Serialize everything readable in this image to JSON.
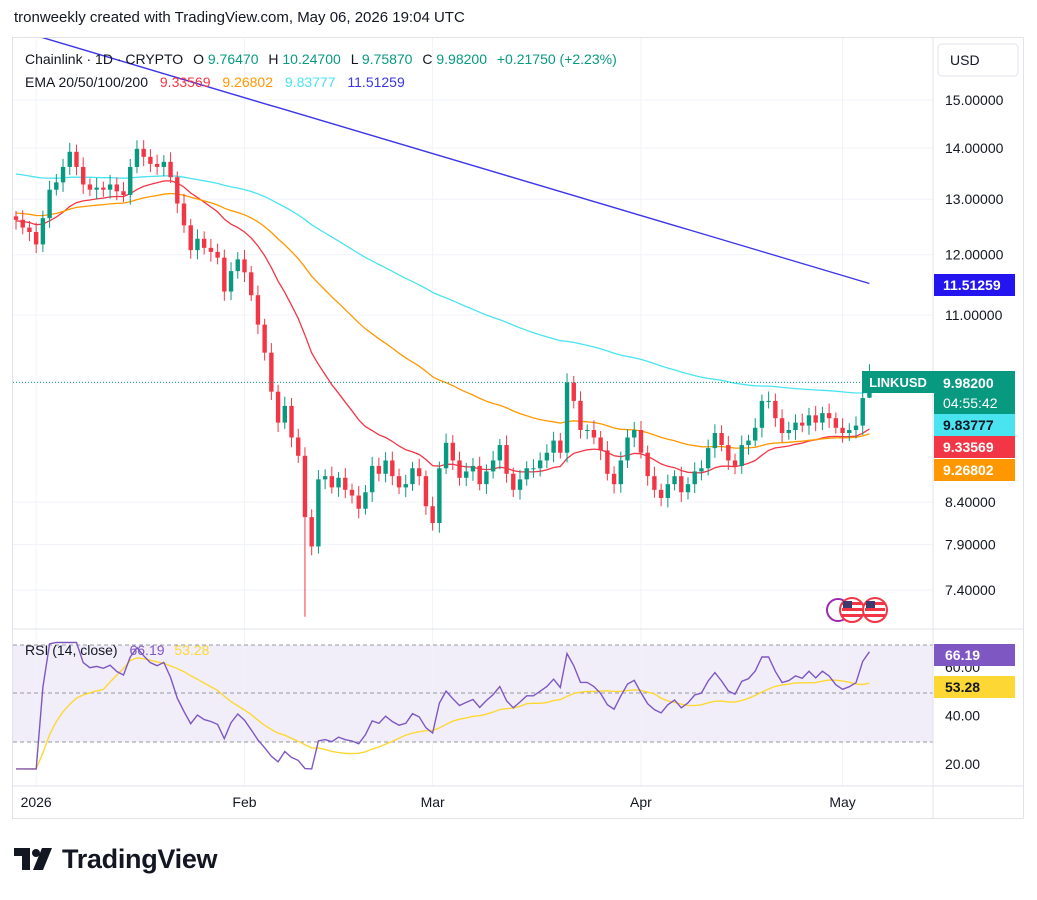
{
  "header": {
    "text": "tronweekly created with TradingView.com, May 06, 2026 19:04 UTC"
  },
  "currency_button": "USD",
  "legend": {
    "symbol": "Chainlink · 1D · CRYPTO",
    "o_label": "O",
    "o_value": "9.76470",
    "h_label": "H",
    "h_value": "10.24700",
    "l_label": "L",
    "l_value": "9.75870",
    "c_label": "C",
    "c_value": "9.98200",
    "change": "+0.21750 (+2.23%)",
    "ema_label": "EMA 20/50/100/200",
    "ema20": "9.33569",
    "ema50": "9.26802",
    "ema100": "9.83777",
    "ema200": "11.51259"
  },
  "rsi_legend": {
    "label": "RSI (14, close)",
    "rsi": "66.19",
    "ma": "53.28"
  },
  "price_badges": {
    "symbol": "LINKUSD",
    "price": "9.98200",
    "countdown": "04:55:42",
    "ema100": "9.83777",
    "ema20": "9.33569",
    "ema50": "9.26802",
    "ema200": "11.51259"
  },
  "rsi_badges": {
    "rsi": "66.19",
    "ma": "53.28",
    "sixty": "60.00"
  },
  "brand": "TradingView",
  "colors": {
    "up": "#089981",
    "down": "#f23645",
    "ema20": "#f23645",
    "ema50": "#ff9800",
    "ema100": "#4ae3f0",
    "ema200": "#3c36e8",
    "rsi": "#7e57c2",
    "rsi_ma": "#fdd835",
    "rsi_band": "#ede7f6"
  },
  "chart_data": [
    {
      "type": "candlestick",
      "title": "Chainlink · 1D · CRYPTO",
      "x_tick_labels": [
        "2026",
        "Feb",
        "Mar",
        "Apr",
        "May"
      ],
      "y_tick_labels": [
        "15.00000",
        "14.00000",
        "13.00000",
        "12.00000",
        "11.00000",
        "8.40000",
        "7.90000",
        "7.40000"
      ],
      "y_ticks": [
        15,
        14,
        13,
        12,
        11,
        8.4,
        7.9,
        7.4
      ],
      "y_scale": "log",
      "ylim": [
        7.05,
        17.6
      ],
      "start_date": "2025-12-29",
      "closes": [
        12.62,
        12.48,
        12.4,
        12.18,
        12.65,
        13.18,
        13.32,
        13.62,
        13.92,
        13.62,
        13.28,
        13.18,
        13.22,
        13.18,
        13.28,
        13.15,
        13.08,
        13.62,
        13.98,
        13.82,
        13.68,
        13.62,
        13.72,
        13.42,
        12.92,
        12.52,
        12.08,
        12.28,
        12.12,
        12.05,
        11.95,
        11.38,
        11.72,
        11.92,
        11.7,
        11.32,
        10.85,
        10.42,
        9.85,
        9.42,
        9.65,
        9.22,
        8.98,
        8.22,
        7.88,
        8.68,
        8.72,
        8.58,
        8.7,
        8.55,
        8.48,
        8.32,
        8.52,
        8.85,
        8.75,
        8.92,
        8.72,
        8.58,
        8.62,
        8.82,
        8.72,
        8.35,
        8.15,
        8.82,
        9.15,
        8.92,
        8.7,
        8.78,
        8.85,
        8.62,
        8.78,
        8.92,
        9.12,
        8.75,
        8.55,
        8.68,
        8.82,
        8.82,
        8.92,
        9.02,
        9.18,
        9.02,
        9.98,
        9.72,
        9.32,
        9.32,
        9.22,
        9.05,
        8.75,
        8.62,
        8.92,
        9.22,
        9.32,
        9.02,
        8.72,
        8.55,
        8.45,
        8.62,
        8.72,
        8.52,
        8.62,
        8.78,
        8.82,
        9.08,
        9.28,
        9.12,
        8.92,
        8.85,
        9.12,
        9.18,
        9.35,
        9.72,
        9.72,
        9.48,
        9.28,
        9.32,
        9.42,
        9.38,
        9.52,
        9.42,
        9.55,
        9.48,
        9.35,
        9.28,
        9.32,
        9.38,
        9.76,
        9.98
      ],
      "ema": [
        {
          "name": "EMA 20",
          "value": 9.33569,
          "color": "#f23645"
        },
        {
          "name": "EMA 50",
          "value": 9.26802,
          "color": "#ff9800"
        },
        {
          "name": "EMA 100",
          "value": 9.83777,
          "color": "#4ae3f0"
        },
        {
          "name": "EMA 200",
          "value": 11.51259,
          "color": "#3c36e8"
        }
      ],
      "ema200_start": 16.6,
      "last": {
        "open": 9.7647,
        "high": 10.247,
        "low": 9.7587,
        "close": 9.982,
        "change": 0.2175,
        "change_pct": 2.23
      }
    },
    {
      "type": "line",
      "title": "RSI (14, close)",
      "y_tick_labels": [
        "60.00",
        "40.00",
        "20.00"
      ],
      "y_ticks": [
        60,
        40,
        20
      ],
      "ylim": [
        15,
        75
      ],
      "bands": [
        30,
        70
      ],
      "series": [
        {
          "name": "RSI",
          "last": 66.19,
          "color": "#7e57c2"
        },
        {
          "name": "MA",
          "last": 53.28,
          "color": "#fdd835"
        }
      ]
    }
  ]
}
